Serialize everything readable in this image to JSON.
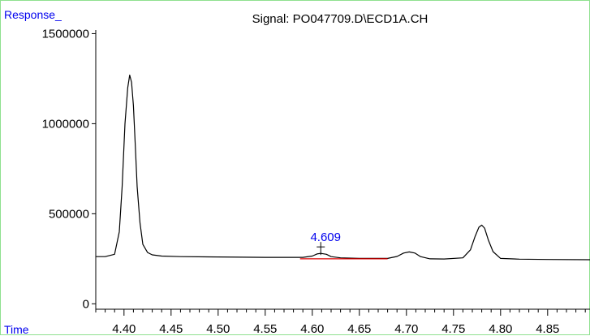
{
  "chart_data": {
    "type": "line",
    "title": "Signal: PO047709.D\\ECD1A.CH",
    "ylabel": "Response_",
    "xlabel": "Time",
    "xlim": [
      4.37,
      4.895
    ],
    "ylim": [
      -30000,
      1520000
    ],
    "y_ticks": [
      {
        "value": 0,
        "label": "0"
      },
      {
        "value": 500000,
        "label": "500000"
      },
      {
        "value": 1000000,
        "label": "1000000"
      },
      {
        "value": 1500000,
        "label": "1500000"
      }
    ],
    "x_ticks": [
      {
        "value": 4.4,
        "label": "4.40"
      },
      {
        "value": 4.45,
        "label": "4.45"
      },
      {
        "value": 4.5,
        "label": "4.50"
      },
      {
        "value": 4.55,
        "label": "4.55"
      },
      {
        "value": 4.6,
        "label": "4.60"
      },
      {
        "value": 4.65,
        "label": "4.65"
      },
      {
        "value": 4.7,
        "label": "4.70"
      },
      {
        "value": 4.75,
        "label": "4.75"
      },
      {
        "value": 4.8,
        "label": "4.80"
      },
      {
        "value": 4.85,
        "label": "4.85"
      }
    ],
    "x_minor_tick_step": 0.01,
    "series": [
      {
        "color": "#000000",
        "x": [
          4.37,
          4.38,
          4.39,
          4.395,
          4.398,
          4.401,
          4.404,
          4.406,
          4.408,
          4.41,
          4.412,
          4.414,
          4.417,
          4.42,
          4.425,
          4.43,
          4.44,
          4.46,
          4.5,
          4.55,
          4.59,
          4.6,
          4.605,
          4.609,
          4.615,
          4.62,
          4.63,
          4.65,
          4.68,
          4.69,
          4.697,
          4.703,
          4.709,
          4.715,
          4.725,
          4.74,
          4.76,
          4.768,
          4.773,
          4.777,
          4.78,
          4.783,
          4.787,
          4.792,
          4.8,
          4.82,
          4.85,
          4.895
        ],
        "y": [
          262000,
          262000,
          275000,
          400000,
          650000,
          1000000,
          1200000,
          1270000,
          1230000,
          1100000,
          880000,
          650000,
          450000,
          330000,
          285000,
          272000,
          265000,
          262000,
          260000,
          258000,
          258000,
          265000,
          277000,
          280000,
          275000,
          262000,
          255000,
          252000,
          252000,
          263000,
          282000,
          288000,
          282000,
          262000,
          250000,
          249000,
          255000,
          300000,
          375000,
          425000,
          437000,
          420000,
          355000,
          290000,
          252000,
          248000,
          246000,
          245000
        ]
      }
    ],
    "baseline": {
      "color": "#dd0000",
      "x": [
        4.587,
        4.68
      ],
      "y": [
        250000,
        250000
      ]
    },
    "annotations": [
      {
        "text": "4.609",
        "x": 4.609,
        "y": 280000,
        "color": "#0000ee"
      }
    ],
    "grid": false,
    "legend": "none"
  }
}
